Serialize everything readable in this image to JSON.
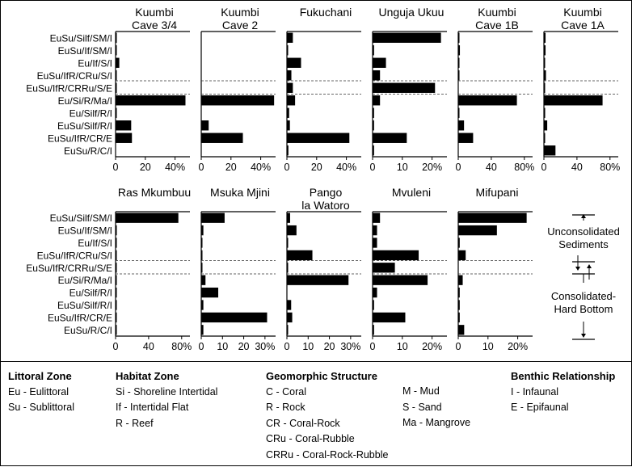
{
  "chart_data": {
    "type": "bar",
    "orientation": "horizontal",
    "categories": [
      "EuSu/Silf/SM/I",
      "EuSu/If/SM/I",
      "Eu/If/S/I",
      "EuSu/IfR/CRu/S/I",
      "EuSu/IfR/CRRu/S/E",
      "Eu/Si/R/Ma/I",
      "Eu/Silf/R/I",
      "EuSu/Silf/R/I",
      "EuSu/IfR/CR/E",
      "EuSu/R/C/I"
    ],
    "panels": [
      {
        "title": [
          "Kuumbi",
          "Cave 3/4"
        ],
        "xmax": 50,
        "ticks": [
          0,
          20,
          40
        ],
        "tick_labels": [
          "0",
          "20",
          "40%"
        ],
        "values": [
          0.5,
          0.5,
          2.5,
          0.5,
          0.5,
          47,
          0.5,
          10.5,
          11,
          0
        ]
      },
      {
        "title": [
          "Kuumbi",
          "Cave 2"
        ],
        "xmax": 50,
        "ticks": [
          0,
          20,
          40
        ],
        "tick_labels": [
          "0",
          "20",
          "40%"
        ],
        "values": [
          0,
          0,
          0,
          0,
          0,
          49,
          0,
          5,
          28,
          0
        ]
      },
      {
        "title": [
          "Fukuchani",
          ""
        ],
        "xmax": 50,
        "ticks": [
          0,
          20,
          40
        ],
        "tick_labels": [
          "0",
          "20",
          "40%"
        ],
        "values": [
          4,
          0.5,
          9.5,
          3,
          4,
          5.5,
          1.5,
          2,
          42,
          1
        ]
      },
      {
        "title": [
          "Unguja Ukuu",
          ""
        ],
        "xmax": 25,
        "ticks": [
          0,
          10,
          20
        ],
        "tick_labels": [
          "0",
          "10",
          "20%"
        ],
        "values": [
          23,
          0.5,
          4.5,
          2.5,
          21,
          2.5,
          0.5,
          0.5,
          11.5,
          0.5
        ]
      },
      {
        "title": [
          "Kuumbi",
          "Cave 1B"
        ],
        "xmax": 90,
        "ticks": [
          0,
          40,
          80
        ],
        "tick_labels": [
          "0",
          "40",
          "80%"
        ],
        "values": [
          1,
          2,
          1,
          1,
          0,
          71,
          1,
          7,
          18,
          0
        ]
      },
      {
        "title": [
          "Kuumbi",
          "Cave 1A"
        ],
        "xmax": 90,
        "ticks": [
          0,
          40,
          80
        ],
        "tick_labels": [
          "0",
          "40",
          "80%"
        ],
        "values": [
          2,
          2,
          0.5,
          2.5,
          0.5,
          71,
          1.5,
          4,
          0.5,
          14
        ]
      },
      {
        "title": [
          "Ras Mkumbuu",
          ""
        ],
        "xmax": 90,
        "ticks": [
          0,
          40,
          80
        ],
        "tick_labels": [
          "0",
          "40",
          "80%"
        ],
        "values": [
          76,
          0.5,
          0.5,
          0.5,
          0.5,
          0.5,
          0.5,
          1,
          0.5,
          0.5
        ]
      },
      {
        "title": [
          "Msuka Mjini",
          ""
        ],
        "xmax": 35,
        "ticks": [
          0,
          10,
          20,
          30
        ],
        "tick_labels": [
          "0",
          "10",
          "20",
          "30%"
        ],
        "values": [
          11,
          1,
          0.5,
          0.5,
          0.5,
          2,
          8,
          1,
          31,
          1
        ]
      },
      {
        "title": [
          "Pango",
          "la Watoro"
        ],
        "xmax": 35,
        "ticks": [
          0,
          10,
          20,
          30
        ],
        "tick_labels": [
          "0",
          "10",
          "20",
          "30%"
        ],
        "values": [
          1.5,
          4.5,
          0.5,
          12,
          0.5,
          29,
          0,
          2,
          2.5,
          0.5
        ]
      },
      {
        "title": [
          "Mvuleni",
          ""
        ],
        "xmax": 25,
        "ticks": [
          0,
          10,
          20
        ],
        "tick_labels": [
          "0",
          "10",
          "20%"
        ],
        "values": [
          2.5,
          1.5,
          1.5,
          15.5,
          7.5,
          18.5,
          1.5,
          0.5,
          11,
          0.5
        ]
      },
      {
        "title": [
          "Mifupani",
          ""
        ],
        "xmax": 25,
        "ticks": [
          0,
          10,
          20
        ],
        "tick_labels": [
          "0",
          "10",
          "20%"
        ],
        "values": [
          23,
          13,
          0.5,
          2.5,
          0,
          1.5,
          0.5,
          0.5,
          0.5,
          2
        ]
      }
    ],
    "side_key": {
      "upper": [
        "Unconsolidated",
        "Sediments"
      ],
      "lower": [
        "Consolidated-",
        "Hard Bottom"
      ]
    }
  },
  "legend": {
    "columns": [
      {
        "heading": "Littoral Zone",
        "items": [
          "Eu - Eulittoral",
          "Su - Sublittoral"
        ]
      },
      {
        "heading": "Habitat Zone",
        "items": [
          "Si - Shoreline Intertidal",
          "If - Intertidal Flat",
          "R - Reef"
        ]
      },
      {
        "heading": "Geomorphic Structure",
        "items": [
          "C - Coral",
          "R - Rock",
          "CR - Coral-Rock",
          "CRu - Coral-Rubble",
          "CRRu - Coral-Rock-Rubble"
        ]
      },
      {
        "heading": "",
        "items": [
          "M - Mud",
          "S - Sand",
          "Ma - Mangrove"
        ]
      },
      {
        "heading": "Benthic Relationship",
        "items": [
          "I - Infaunal",
          "E - Epifaunal"
        ]
      }
    ]
  }
}
